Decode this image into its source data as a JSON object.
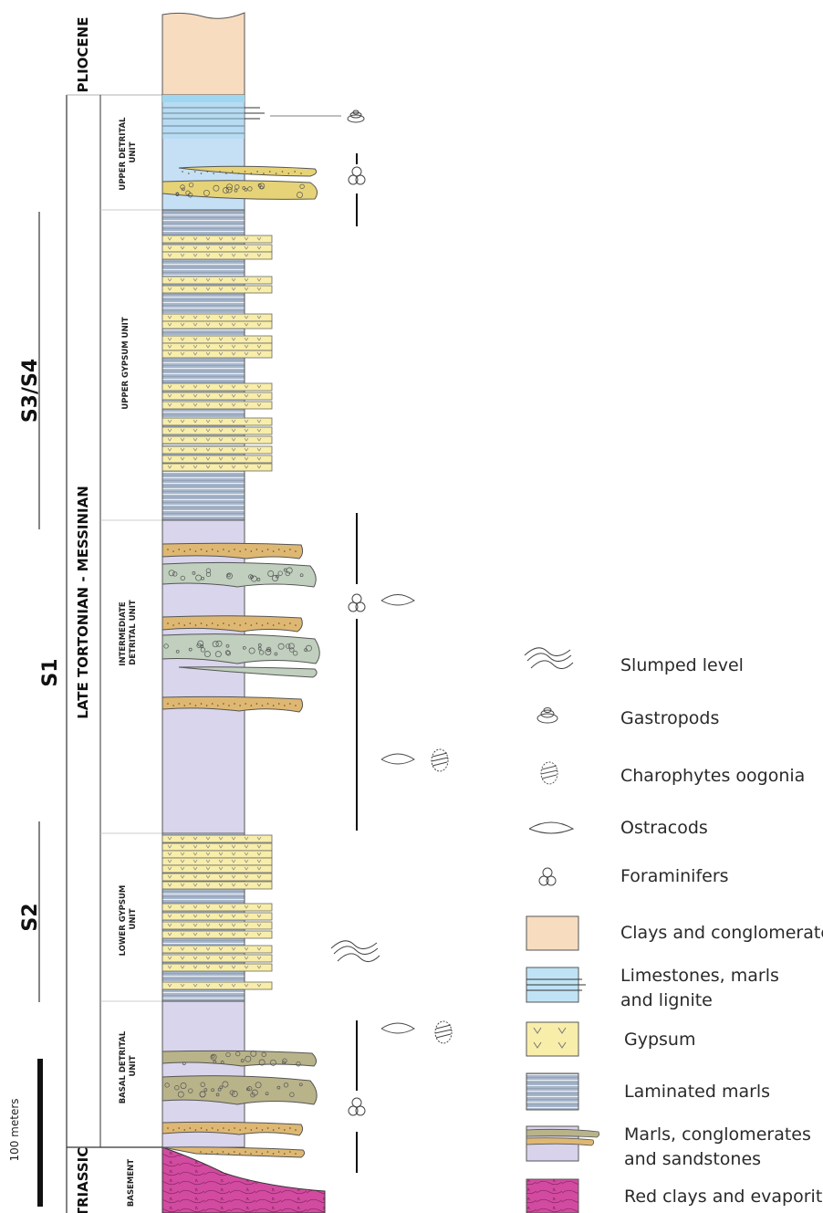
{
  "diagram": {
    "periods": [
      {
        "name": "PLIOCENE"
      },
      {
        "name": "LATE TORTONIAN - MESSINIAN"
      },
      {
        "name": "TRIASSIC"
      }
    ],
    "sequences": [
      {
        "name": "S3/S4"
      },
      {
        "name": "S1"
      },
      {
        "name": "S2"
      }
    ],
    "units": [
      {
        "lines": [
          "UPPER DETRITAL",
          "UNIT"
        ]
      },
      {
        "lines": [
          "UPPER GYPSUM UNIT"
        ]
      },
      {
        "lines": [
          "INTERMEDIATE",
          "DETRITAL UNIT"
        ]
      },
      {
        "lines": [
          "LOWER GYPSUM",
          "UNIT"
        ]
      },
      {
        "lines": [
          "BASAL DETRITAL",
          "UNIT"
        ]
      },
      {
        "lines": [
          "BASEMENT"
        ]
      }
    ],
    "scale": {
      "label": "100 meters"
    },
    "legend": [
      {
        "lines": [
          "Slumped level"
        ],
        "symbol": "slump-icon"
      },
      {
        "lines": [
          "Gastropods"
        ],
        "symbol": "gastropod-icon"
      },
      {
        "lines": [
          "Charophytes oogonia"
        ],
        "symbol": "charophyte-icon"
      },
      {
        "lines": [
          "Ostracods"
        ],
        "symbol": "ostracod-icon"
      },
      {
        "lines": [
          "Foraminifers"
        ],
        "symbol": "foraminifer-icon"
      },
      {
        "lines": [
          "Clays and conglomerates"
        ],
        "symbol": "clay-swatch",
        "color": "#f7dcc0"
      },
      {
        "lines": [
          "Limestones, marls",
          "and lignite"
        ],
        "symbol": "limestone-swatch",
        "color": "#bfe3f5"
      },
      {
        "lines": [
          "Gypsum"
        ],
        "symbol": "gypsum-swatch",
        "color": "#f8eeaa"
      },
      {
        "lines": [
          "Laminated marls"
        ],
        "symbol": "laminated-swatch",
        "color": "#a3b3c8"
      },
      {
        "lines": [
          "Marls, conglomerates",
          "and sandstones"
        ],
        "symbol": "marl-swatch",
        "color": "#d8d3ea"
      },
      {
        "lines": [
          "Red clays and evaporites"
        ],
        "symbol": "redclay-swatch",
        "color": "#d24ba0"
      }
    ]
  }
}
